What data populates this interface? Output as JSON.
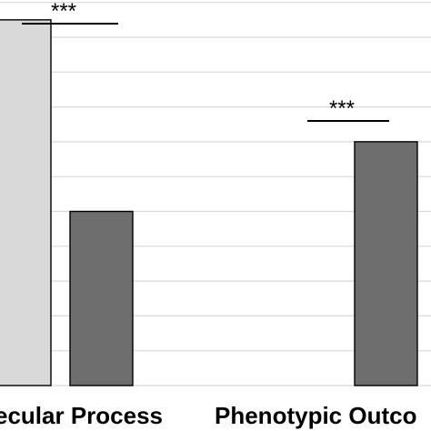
{
  "chart_data": {
    "type": "bar",
    "categories": [
      "Molecular Process",
      "Phenotypic Outcome"
    ],
    "visible_category_labels": [
      "ecular Process",
      "Phenotypic Outco"
    ],
    "series": [
      {
        "color": "#d9d9d9",
        "values": [
          10.5,
          null
        ]
      },
      {
        "color": "#6e6e6e",
        "values": [
          5.0,
          7.0
        ]
      }
    ],
    "ylim": [
      0,
      11
    ],
    "y_grid_step": 1,
    "grid": true,
    "legend": "none",
    "annotations": [
      {
        "text": "***",
        "category": 0
      },
      {
        "text": "***",
        "category": 1
      }
    ]
  }
}
